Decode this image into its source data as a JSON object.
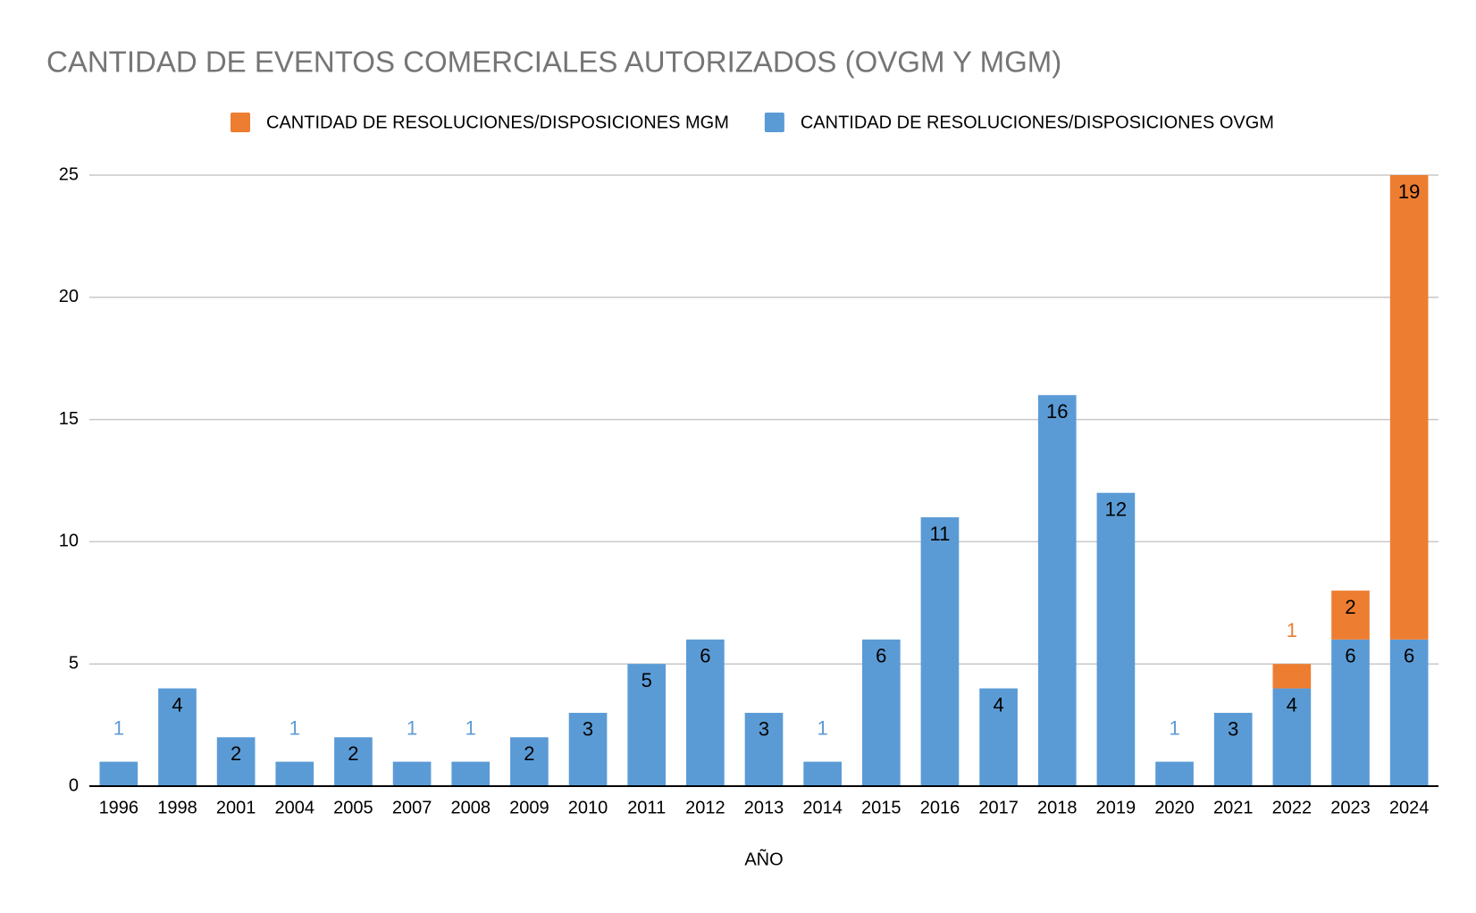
{
  "chart_data": {
    "type": "stacked_bar",
    "title": "CANTIDAD DE EVENTOS COMERCIALES AUTORIZADOS (OVGM Y MGM)",
    "x_label": "AÑO",
    "categories": [
      "1996",
      "1998",
      "2001",
      "2004",
      "2005",
      "2007",
      "2008",
      "2009",
      "2010",
      "2011",
      "2012",
      "2013",
      "2014",
      "2015",
      "2016",
      "2017",
      "2018",
      "2019",
      "2020",
      "2021",
      "2022",
      "2023",
      "2024"
    ],
    "series": [
      {
        "name": "CANTIDAD DE RESOLUCIONES/DISPOSICIONES MGM",
        "color": "#ed7d31",
        "values": [
          null,
          null,
          null,
          null,
          null,
          null,
          null,
          null,
          null,
          null,
          null,
          null,
          null,
          null,
          null,
          null,
          null,
          null,
          null,
          null,
          1,
          2,
          19
        ]
      },
      {
        "name": "CANTIDAD DE RESOLUCIONES/DISPOSICIONES OVGM",
        "color": "#5b9bd5",
        "values": [
          1,
          4,
          2,
          1,
          2,
          1,
          1,
          2,
          3,
          5,
          6,
          3,
          1,
          6,
          11,
          4,
          16,
          12,
          1,
          3,
          4,
          6,
          6
        ]
      }
    ],
    "ylim": [
      0,
      25
    ],
    "yticks": [
      0,
      5,
      10,
      15,
      20,
      25
    ],
    "grid": true
  }
}
